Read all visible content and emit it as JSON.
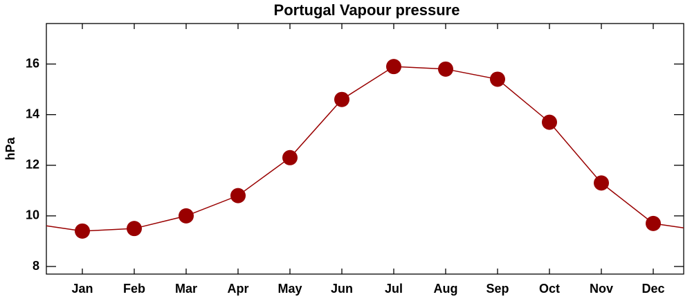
{
  "chart_data": {
    "type": "line",
    "title": "Portugal Vapour pressure",
    "y_label": "hPa",
    "categories": [
      "Jan",
      "Feb",
      "Mar",
      "Apr",
      "May",
      "Jun",
      "Jul",
      "Aug",
      "Sep",
      "Oct",
      "Nov",
      "Dec"
    ],
    "series": [
      {
        "name": "Vapour pressure",
        "color": "#990000",
        "values": [
          9.4,
          9.5,
          10.0,
          10.8,
          12.3,
          14.6,
          15.9,
          15.8,
          15.4,
          13.7,
          11.3,
          9.7
        ]
      }
    ],
    "ylim": [
      7.7,
      17.6
    ],
    "yticks": [
      8,
      10,
      12,
      14,
      16
    ],
    "grid": false
  }
}
